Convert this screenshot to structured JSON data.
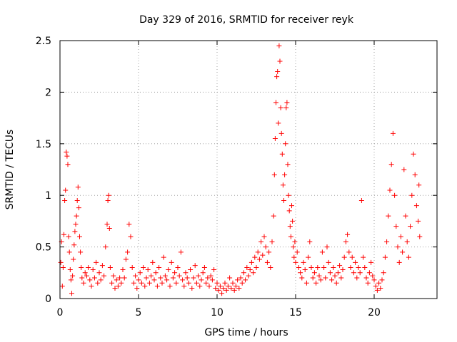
{
  "chart_data": {
    "type": "scatter",
    "title": "Day 329 of 2016, SRMTID for receiver reyk",
    "xlabel": "GPS time / hours",
    "ylabel": "SRMTID / TECUs",
    "xlim": [
      0,
      24
    ],
    "ylim": [
      0,
      2.5
    ],
    "x_ticks": [
      0,
      5,
      10,
      15,
      20
    ],
    "x_tick_labels": [
      "0",
      "5",
      "10",
      "15",
      "20"
    ],
    "y_ticks": [
      0,
      0.5,
      1,
      1.5,
      2,
      2.5
    ],
    "y_tick_labels": [
      "0",
      "0.5",
      "1",
      "1.5",
      "2",
      "2.5"
    ],
    "grid": true,
    "marker": "+",
    "series": [
      {
        "name": "SRMTID",
        "color": "#ff0000",
        "points": [
          [
            0.05,
            0.35
          ],
          [
            0.1,
            0.55
          ],
          [
            0.15,
            0.12
          ],
          [
            0.2,
            0.3
          ],
          [
            0.25,
            0.62
          ],
          [
            0.3,
            0.95
          ],
          [
            0.35,
            1.05
          ],
          [
            0.4,
            1.42
          ],
          [
            0.45,
            1.38
          ],
          [
            0.5,
            1.3
          ],
          [
            0.55,
            0.6
          ],
          [
            0.6,
            0.45
          ],
          [
            0.65,
            0.28
          ],
          [
            0.7,
            0.18
          ],
          [
            0.75,
            0.05
          ],
          [
            0.8,
            0.22
          ],
          [
            0.85,
            0.38
          ],
          [
            0.9,
            0.52
          ],
          [
            0.95,
            0.65
          ],
          [
            1.0,
            0.72
          ],
          [
            1.05,
            0.8
          ],
          [
            1.1,
            0.95
          ],
          [
            1.15,
            1.08
          ],
          [
            1.2,
            0.88
          ],
          [
            1.25,
            0.6
          ],
          [
            1.3,
            0.45
          ],
          [
            1.35,
            0.3
          ],
          [
            1.4,
            0.2
          ],
          [
            1.5,
            0.15
          ],
          [
            1.6,
            0.25
          ],
          [
            1.7,
            0.22
          ],
          [
            1.8,
            0.3
          ],
          [
            1.9,
            0.18
          ],
          [
            2.0,
            0.12
          ],
          [
            2.1,
            0.28
          ],
          [
            2.2,
            0.2
          ],
          [
            2.3,
            0.35
          ],
          [
            2.4,
            0.15
          ],
          [
            2.5,
            0.25
          ],
          [
            2.6,
            0.18
          ],
          [
            2.7,
            0.32
          ],
          [
            2.8,
            0.22
          ],
          [
            2.9,
            0.5
          ],
          [
            3.0,
            0.72
          ],
          [
            3.05,
            0.95
          ],
          [
            3.1,
            1.0
          ],
          [
            3.15,
            0.68
          ],
          [
            3.2,
            0.3
          ],
          [
            3.3,
            0.15
          ],
          [
            3.4,
            0.22
          ],
          [
            3.5,
            0.1
          ],
          [
            3.6,
            0.18
          ],
          [
            3.7,
            0.12
          ],
          [
            3.8,
            0.2
          ],
          [
            3.9,
            0.15
          ],
          [
            4.0,
            0.28
          ],
          [
            4.1,
            0.2
          ],
          [
            4.2,
            0.38
          ],
          [
            4.3,
            0.45
          ],
          [
            4.4,
            0.72
          ],
          [
            4.5,
            0.6
          ],
          [
            4.6,
            0.3
          ],
          [
            4.7,
            0.15
          ],
          [
            4.8,
            0.22
          ],
          [
            4.9,
            0.1
          ],
          [
            5.0,
            0.18
          ],
          [
            5.1,
            0.25
          ],
          [
            5.2,
            0.15
          ],
          [
            5.3,
            0.3
          ],
          [
            5.4,
            0.12
          ],
          [
            5.5,
            0.2
          ],
          [
            5.6,
            0.28
          ],
          [
            5.7,
            0.15
          ],
          [
            5.8,
            0.22
          ],
          [
            5.9,
            0.35
          ],
          [
            6.0,
            0.18
          ],
          [
            6.1,
            0.25
          ],
          [
            6.2,
            0.12
          ],
          [
            6.3,
            0.3
          ],
          [
            6.4,
            0.2
          ],
          [
            6.5,
            0.15
          ],
          [
            6.6,
            0.4
          ],
          [
            6.7,
            0.22
          ],
          [
            6.8,
            0.18
          ],
          [
            6.9,
            0.28
          ],
          [
            7.0,
            0.12
          ],
          [
            7.1,
            0.35
          ],
          [
            7.2,
            0.2
          ],
          [
            7.3,
            0.25
          ],
          [
            7.4,
            0.15
          ],
          [
            7.5,
            0.3
          ],
          [
            7.6,
            0.22
          ],
          [
            7.7,
            0.45
          ],
          [
            7.8,
            0.18
          ],
          [
            7.9,
            0.12
          ],
          [
            8.0,
            0.25
          ],
          [
            8.1,
            0.2
          ],
          [
            8.2,
            0.15
          ],
          [
            8.3,
            0.28
          ],
          [
            8.4,
            0.1
          ],
          [
            8.5,
            0.2
          ],
          [
            8.6,
            0.32
          ],
          [
            8.7,
            0.15
          ],
          [
            8.8,
            0.22
          ],
          [
            8.9,
            0.12
          ],
          [
            9.0,
            0.18
          ],
          [
            9.1,
            0.25
          ],
          [
            9.2,
            0.3
          ],
          [
            9.3,
            0.15
          ],
          [
            9.4,
            0.2
          ],
          [
            9.5,
            0.12
          ],
          [
            9.6,
            0.22
          ],
          [
            9.7,
            0.18
          ],
          [
            9.8,
            0.28
          ],
          [
            9.9,
            0.1
          ],
          [
            10.0,
            0.15
          ],
          [
            10.1,
            0.08
          ],
          [
            10.2,
            0.12
          ],
          [
            10.3,
            0.05
          ],
          [
            10.4,
            0.1
          ],
          [
            10.5,
            0.15
          ],
          [
            10.6,
            0.08
          ],
          [
            10.7,
            0.12
          ],
          [
            10.8,
            0.2
          ],
          [
            10.9,
            0.1
          ],
          [
            11.0,
            0.15
          ],
          [
            11.1,
            0.08
          ],
          [
            11.2,
            0.12
          ],
          [
            11.3,
            0.18
          ],
          [
            11.4,
            0.1
          ],
          [
            11.5,
            0.2
          ],
          [
            11.6,
            0.15
          ],
          [
            11.7,
            0.25
          ],
          [
            11.8,
            0.18
          ],
          [
            11.9,
            0.3
          ],
          [
            12.0,
            0.22
          ],
          [
            12.1,
            0.28
          ],
          [
            12.2,
            0.35
          ],
          [
            12.3,
            0.25
          ],
          [
            12.4,
            0.4
          ],
          [
            12.5,
            0.3
          ],
          [
            12.6,
            0.45
          ],
          [
            12.7,
            0.38
          ],
          [
            12.8,
            0.55
          ],
          [
            12.9,
            0.42
          ],
          [
            13.0,
            0.6
          ],
          [
            13.1,
            0.5
          ],
          [
            13.2,
            0.35
          ],
          [
            13.3,
            0.45
          ],
          [
            13.4,
            0.3
          ],
          [
            13.5,
            0.55
          ],
          [
            13.6,
            0.8
          ],
          [
            13.65,
            1.2
          ],
          [
            13.7,
            1.55
          ],
          [
            13.75,
            1.9
          ],
          [
            13.8,
            2.15
          ],
          [
            13.85,
            2.2
          ],
          [
            13.9,
            1.7
          ],
          [
            13.95,
            2.45
          ],
          [
            14.0,
            2.3
          ],
          [
            14.05,
            1.85
          ],
          [
            14.1,
            1.6
          ],
          [
            14.15,
            1.4
          ],
          [
            14.2,
            1.1
          ],
          [
            14.25,
            0.95
          ],
          [
            14.3,
            1.2
          ],
          [
            14.35,
            1.5
          ],
          [
            14.4,
            1.85
          ],
          [
            14.45,
            1.9
          ],
          [
            14.5,
            1.3
          ],
          [
            14.55,
            1.0
          ],
          [
            14.6,
            0.85
          ],
          [
            14.65,
            0.7
          ],
          [
            14.7,
            0.6
          ],
          [
            14.75,
            0.9
          ],
          [
            14.8,
            0.75
          ],
          [
            14.85,
            0.5
          ],
          [
            14.9,
            0.4
          ],
          [
            14.95,
            0.55
          ],
          [
            15.0,
            0.35
          ],
          [
            15.1,
            0.45
          ],
          [
            15.2,
            0.3
          ],
          [
            15.3,
            0.25
          ],
          [
            15.4,
            0.2
          ],
          [
            15.5,
            0.35
          ],
          [
            15.6,
            0.28
          ],
          [
            15.7,
            0.15
          ],
          [
            15.8,
            0.4
          ],
          [
            15.9,
            0.55
          ],
          [
            16.0,
            0.3
          ],
          [
            16.1,
            0.2
          ],
          [
            16.2,
            0.25
          ],
          [
            16.3,
            0.15
          ],
          [
            16.4,
            0.3
          ],
          [
            16.5,
            0.22
          ],
          [
            16.6,
            0.18
          ],
          [
            16.7,
            0.45
          ],
          [
            16.8,
            0.3
          ],
          [
            16.9,
            0.2
          ],
          [
            17.0,
            0.5
          ],
          [
            17.1,
            0.35
          ],
          [
            17.2,
            0.25
          ],
          [
            17.3,
            0.18
          ],
          [
            17.4,
            0.3
          ],
          [
            17.5,
            0.22
          ],
          [
            17.6,
            0.15
          ],
          [
            17.7,
            0.25
          ],
          [
            17.8,
            0.32
          ],
          [
            17.9,
            0.2
          ],
          [
            18.0,
            0.28
          ],
          [
            18.1,
            0.4
          ],
          [
            18.2,
            0.55
          ],
          [
            18.3,
            0.62
          ],
          [
            18.4,
            0.45
          ],
          [
            18.5,
            0.3
          ],
          [
            18.6,
            0.4
          ],
          [
            18.7,
            0.25
          ],
          [
            18.8,
            0.35
          ],
          [
            18.9,
            0.2
          ],
          [
            19.0,
            0.3
          ],
          [
            19.1,
            0.25
          ],
          [
            19.2,
            0.95
          ],
          [
            19.3,
            0.4
          ],
          [
            19.4,
            0.3
          ],
          [
            19.5,
            0.2
          ],
          [
            19.6,
            0.15
          ],
          [
            19.7,
            0.25
          ],
          [
            19.8,
            0.35
          ],
          [
            19.9,
            0.22
          ],
          [
            20.0,
            0.18
          ],
          [
            20.1,
            0.12
          ],
          [
            20.2,
            0.08
          ],
          [
            20.3,
            0.15
          ],
          [
            20.4,
            0.1
          ],
          [
            20.5,
            0.18
          ],
          [
            20.6,
            0.25
          ],
          [
            20.7,
            0.4
          ],
          [
            20.8,
            0.55
          ],
          [
            20.9,
            0.8
          ],
          [
            21.0,
            1.05
          ],
          [
            21.1,
            1.3
          ],
          [
            21.2,
            1.6
          ],
          [
            21.3,
            1.0
          ],
          [
            21.4,
            0.7
          ],
          [
            21.5,
            0.5
          ],
          [
            21.6,
            0.35
          ],
          [
            21.7,
            0.6
          ],
          [
            21.8,
            0.45
          ],
          [
            21.9,
            1.25
          ],
          [
            22.0,
            0.8
          ],
          [
            22.1,
            0.55
          ],
          [
            22.2,
            0.4
          ],
          [
            22.3,
            0.7
          ],
          [
            22.4,
            1.0
          ],
          [
            22.5,
            1.4
          ],
          [
            22.6,
            1.2
          ],
          [
            22.7,
            0.9
          ],
          [
            22.8,
            0.75
          ],
          [
            22.85,
            1.1
          ],
          [
            22.9,
            0.6
          ]
        ]
      }
    ]
  }
}
